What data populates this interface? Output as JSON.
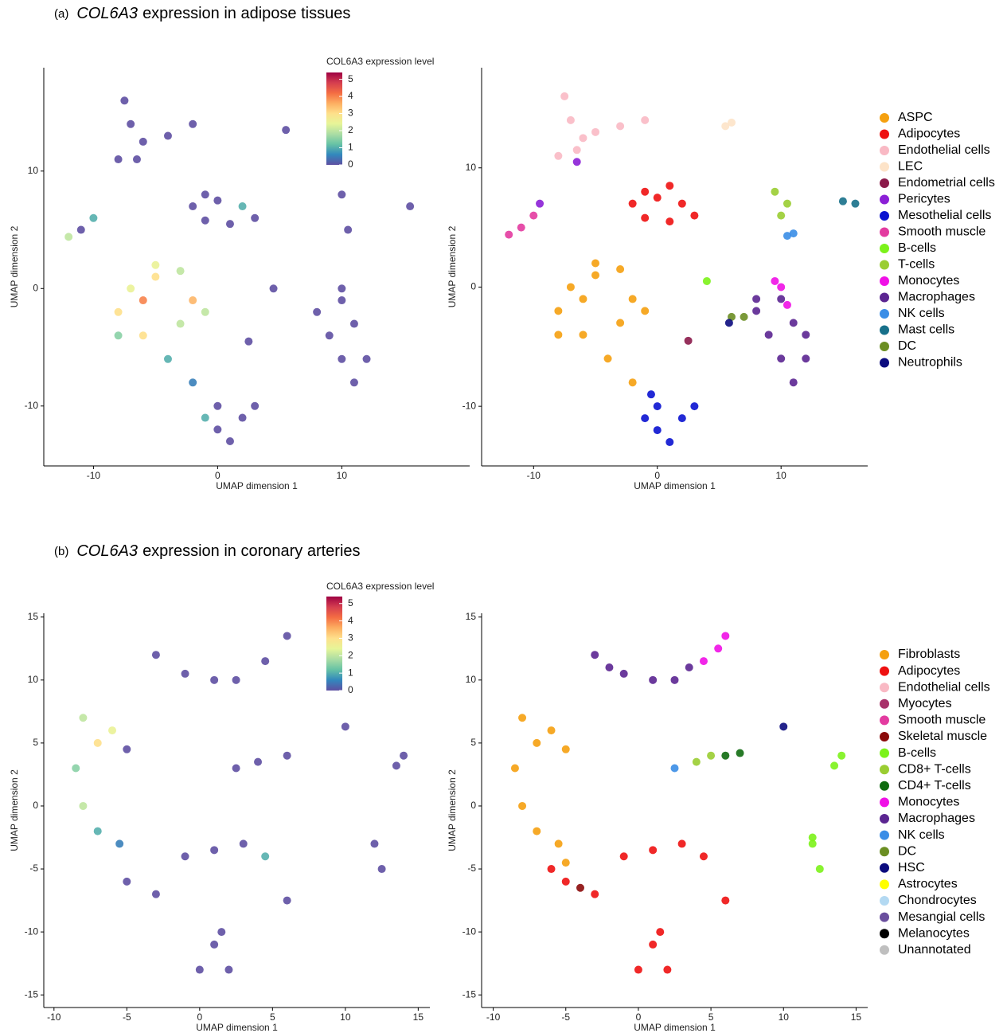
{
  "chart_data": [
    {
      "type": "scatter",
      "panel_label": "(a)",
      "title_italic": "COL6A3",
      "title": "expression in adipose tissues",
      "xlabel": "UMAP dimension 1",
      "ylabel": "UMAP dimension 2",
      "xlim": [
        -14,
        20.3
      ],
      "ylim": [
        -15.1,
        18.8
      ],
      "xticks": [
        -10,
        0,
        10
      ],
      "yticks": [
        -10,
        0,
        10
      ],
      "colorbar_title": "COL6A3 expression level",
      "colorbar_lim": [
        0,
        5.4
      ],
      "colorbar_ticks": [
        0,
        1,
        2,
        3,
        4,
        5
      ],
      "colormap": [
        "#5e4fa2",
        "#3288bd",
        "#66c2a5",
        "#abdda4",
        "#e6f598",
        "#fee08b",
        "#fdae61",
        "#f46d43",
        "#d53e4f",
        "#9e0142"
      ],
      "x": [
        -7.5,
        -7,
        -6,
        -4,
        -2,
        -8,
        -6.5,
        5.5,
        -1,
        -2,
        0,
        2,
        3,
        1,
        -1,
        10,
        10.5,
        15.5,
        -11,
        -12,
        -10,
        -8,
        -7,
        -5,
        -3,
        -2,
        -3,
        -6,
        -8,
        -5,
        -1,
        -4,
        -2,
        -6,
        0,
        2,
        0,
        -1,
        1,
        3,
        8,
        9,
        10,
        11,
        12,
        10,
        11,
        10,
        4.5,
        2.5
      ],
      "y": [
        16,
        14,
        12.5,
        13,
        14,
        11,
        11,
        13.5,
        8,
        7,
        7.5,
        7,
        6,
        5.5,
        5.8,
        8,
        5,
        7,
        5,
        4.4,
        6,
        -2,
        0,
        1,
        1.5,
        -1,
        -3,
        -4,
        -4,
        2,
        -2,
        -6,
        -8,
        -1,
        -10,
        -11,
        -12,
        -11,
        -13,
        -10,
        -2,
        -4,
        -6,
        -8,
        -6,
        -1,
        -3,
        0,
        0,
        -4.5
      ],
      "values": [
        0,
        0,
        0,
        0,
        0,
        0,
        0,
        0,
        0,
        0,
        0,
        1,
        0,
        0,
        0,
        0,
        0,
        0,
        0,
        2,
        1,
        3,
        2.5,
        3,
        2,
        3.5,
        2,
        3,
        1.5,
        2.5,
        2,
        1,
        0.5,
        4,
        0,
        0,
        0,
        1,
        0,
        0,
        0,
        0,
        0,
        0,
        0,
        0,
        0,
        0,
        0,
        0
      ]
    },
    {
      "type": "scatter",
      "xlabel": "UMAP dimension 1",
      "ylabel": "UMAP dimension 2",
      "xlim": [
        -14.2,
        17
      ],
      "ylim": [
        -15,
        18.4
      ],
      "xticks": [
        -10,
        0,
        10
      ],
      "yticks": [
        -10,
        0,
        10
      ],
      "series": [
        {
          "name": "ASPC",
          "color": "#f5a00f",
          "x": [
            -8,
            -7,
            -5,
            -3,
            -2,
            -3,
            -6,
            -8,
            -5,
            -1,
            -4,
            -2,
            -6
          ],
          "y": [
            -2,
            0,
            1,
            1.5,
            -1,
            -3,
            -4,
            -4,
            2,
            -2,
            -6,
            -8,
            -1
          ]
        },
        {
          "name": "Adipocytes",
          "color": "#ee1111",
          "x": [
            -1,
            -2,
            0,
            2,
            3,
            1,
            -1,
            1
          ],
          "y": [
            8,
            7,
            7.5,
            7,
            6,
            5.5,
            5.8,
            8.5
          ]
        },
        {
          "name": "Endothelial cells",
          "color": "#f9b9c4",
          "x": [
            -7.5,
            -7,
            -6,
            -5,
            -3,
            -1,
            -8,
            -6.5
          ],
          "y": [
            16,
            14,
            12.5,
            13,
            13.5,
            14,
            11,
            11.5
          ]
        },
        {
          "name": "LEC",
          "color": "#fde3c8",
          "x": [
            5.5,
            6
          ],
          "y": [
            13.5,
            13.8
          ]
        },
        {
          "name": "Endometrial cells",
          "color": "#8b1a4a",
          "x": [
            2.5
          ],
          "y": [
            -4.5
          ]
        },
        {
          "name": "Pericytes",
          "color": "#8b1fd6",
          "x": [
            -6.5,
            -9.5
          ],
          "y": [
            10.5,
            7
          ]
        },
        {
          "name": "Mesothelial cells",
          "color": "#0a12d0",
          "x": [
            0,
            2,
            0,
            -1,
            1,
            3,
            -0.5
          ],
          "y": [
            -10,
            -11,
            -12,
            -11,
            -13,
            -10,
            -9
          ]
        },
        {
          "name": "Smooth muscle",
          "color": "#e33ba0",
          "x": [
            -11,
            -12,
            -10
          ],
          "y": [
            5,
            4.4,
            6
          ]
        },
        {
          "name": "B-cells",
          "color": "#7cf21a",
          "x": [
            4
          ],
          "y": [
            0.5
          ]
        },
        {
          "name": "T-cells",
          "color": "#9acd32",
          "x": [
            9.5,
            10.5,
            10
          ],
          "y": [
            8,
            7,
            6
          ]
        },
        {
          "name": "Monocytes",
          "color": "#f010e6",
          "x": [
            10,
            10.5,
            9.5
          ],
          "y": [
            0,
            -1.5,
            0.5
          ]
        },
        {
          "name": "Macrophages",
          "color": "#5b2591",
          "x": [
            8,
            9,
            10,
            11,
            12,
            8,
            10,
            11,
            12
          ],
          "y": [
            -2,
            -4,
            -6,
            -8,
            -6,
            -1,
            -1,
            -3,
            -4
          ]
        },
        {
          "name": "NK cells",
          "color": "#3a8de6",
          "x": [
            11,
            10.5
          ],
          "y": [
            4.5,
            4.3
          ]
        },
        {
          "name": "Mast cells",
          "color": "#17708a",
          "x": [
            15,
            16
          ],
          "y": [
            7.2,
            7
          ]
        },
        {
          "name": "DC",
          "color": "#6b8e23",
          "x": [
            7,
            6
          ],
          "y": [
            -2.5,
            -2.5
          ]
        },
        {
          "name": "Neutrophils",
          "color": "#0b0b7e",
          "x": [
            5.8
          ],
          "y": [
            -3
          ]
        }
      ]
    },
    {
      "type": "scatter",
      "panel_label": "(b)",
      "title_italic": "COL6A3",
      "title": "expression in coronary arteries",
      "xlabel": "UMAP dimension 1",
      "ylabel": "UMAP dimension 2",
      "xlim": [
        -10.7,
        15.8
      ],
      "ylim": [
        -16,
        15.3
      ],
      "xticks": [
        -10,
        -5,
        0,
        5,
        10,
        15
      ],
      "yticks": [
        -15,
        -10,
        -5,
        0,
        5,
        10,
        15
      ],
      "colorbar_title": "COL6A3 expression level",
      "colorbar_lim": [
        0,
        5.4
      ],
      "colorbar_ticks": [
        0,
        1,
        2,
        3,
        4,
        5
      ],
      "colormap": [
        "#5e4fa2",
        "#3288bd",
        "#66c2a5",
        "#abdda4",
        "#e6f598",
        "#fee08b",
        "#fdae61",
        "#f46d43",
        "#d53e4f",
        "#9e0142"
      ],
      "x": [
        -3,
        -1,
        1,
        2.5,
        4.5,
        6,
        -8,
        -7,
        -8.5,
        -8,
        -7,
        -5.5,
        -6,
        -5,
        -5,
        -3,
        -1,
        1,
        3,
        4.5,
        1,
        0,
        2,
        1.5,
        6,
        4,
        6,
        2.5,
        14,
        13.5,
        12,
        12.5,
        10
      ],
      "y": [
        12,
        10.5,
        10,
        10,
        11.5,
        13.5,
        7,
        5,
        3,
        0,
        -2,
        -3,
        6,
        4.5,
        -6,
        -7,
        -4,
        -3.5,
        -3,
        -4,
        -11,
        -13,
        -13,
        -10,
        -7.5,
        3.5,
        4,
        3,
        4,
        3.2,
        -3,
        -5,
        6.3
      ],
      "values": [
        0,
        0,
        0,
        0,
        0,
        0,
        2,
        3,
        1.5,
        2,
        1,
        0.5,
        2.5,
        0,
        0,
        0,
        0,
        0,
        0,
        1,
        0,
        0,
        0,
        0,
        0,
        0,
        0,
        0,
        0,
        0,
        0,
        0,
        0
      ]
    },
    {
      "type": "scatter",
      "xlabel": "UMAP dimension 1",
      "ylabel": "UMAP dimension 2",
      "xlim": [
        -10.8,
        15.8
      ],
      "ylim": [
        -16,
        15.3
      ],
      "xticks": [
        -10,
        -5,
        0,
        5,
        10,
        15
      ],
      "yticks": [
        -15,
        -10,
        -5,
        0,
        5,
        10,
        15
      ],
      "series": [
        {
          "name": "Fibroblasts",
          "color": "#f5a00f",
          "x": [
            -8,
            -7,
            -8.5,
            -8,
            -7,
            -5.5,
            -5,
            -6,
            -5
          ],
          "y": [
            7,
            5,
            3,
            0,
            -2,
            -3,
            -4.5,
            6,
            4.5
          ]
        },
        {
          "name": "Adipocytes",
          "color": "#ee1111",
          "x": [
            -5,
            -3,
            -1,
            1,
            3,
            4.5,
            -6,
            1,
            0,
            2,
            1.5,
            6
          ],
          "y": [
            -6,
            -7,
            -4,
            -3.5,
            -3,
            -4,
            -5,
            -11,
            -13,
            -13,
            -10,
            -7.5
          ]
        },
        {
          "name": "Endothelial cells",
          "color": "#f9b9c4",
          "x": [],
          "y": []
        },
        {
          "name": "Myocytes",
          "color": "#a8326a",
          "x": [],
          "y": []
        },
        {
          "name": "Smooth muscle",
          "color": "#e33ba0",
          "x": [],
          "y": []
        },
        {
          "name": "Skeletal muscle",
          "color": "#8b0a0a",
          "x": [
            -4
          ],
          "y": [
            -6.5
          ]
        },
        {
          "name": "B-cells",
          "color": "#7cf21a",
          "x": [
            14,
            13.5,
            12,
            12.5,
            12
          ],
          "y": [
            4,
            3.2,
            -3,
            -5,
            -2.5
          ]
        },
        {
          "name": "CD8+ T-cells",
          "color": "#9acd32",
          "x": [
            4,
            5
          ],
          "y": [
            3.5,
            4
          ]
        },
        {
          "name": "CD4+ T-cells",
          "color": "#0f6b0f",
          "x": [
            6,
            7
          ],
          "y": [
            4,
            4.2
          ]
        },
        {
          "name": "Monocytes",
          "color": "#f010e6",
          "x": [
            4.5,
            5.5,
            6
          ],
          "y": [
            11.5,
            12.5,
            13.5
          ]
        },
        {
          "name": "Macrophages",
          "color": "#5b2591",
          "x": [
            -3,
            -1,
            1,
            2.5,
            3.5,
            -2
          ],
          "y": [
            12,
            10.5,
            10,
            10,
            11,
            11
          ]
        },
        {
          "name": "NK cells",
          "color": "#3a8de6",
          "x": [
            2.5
          ],
          "y": [
            3
          ]
        },
        {
          "name": "DC",
          "color": "#6b8e23",
          "x": [],
          "y": []
        },
        {
          "name": "HSC",
          "color": "#0b0b7e",
          "x": [
            10
          ],
          "y": [
            6.3
          ]
        },
        {
          "name": "Astrocytes",
          "color": "#ffff00",
          "x": [],
          "y": []
        },
        {
          "name": "Chondrocytes",
          "color": "#b3d9f2",
          "x": [],
          "y": []
        },
        {
          "name": "Mesangial cells",
          "color": "#6a4f9e",
          "x": [],
          "y": []
        },
        {
          "name": "Melanocytes",
          "color": "#000000",
          "x": [],
          "y": []
        },
        {
          "name": "Unannotated",
          "color": "#bfbfbf",
          "x": [],
          "y": []
        }
      ]
    }
  ]
}
